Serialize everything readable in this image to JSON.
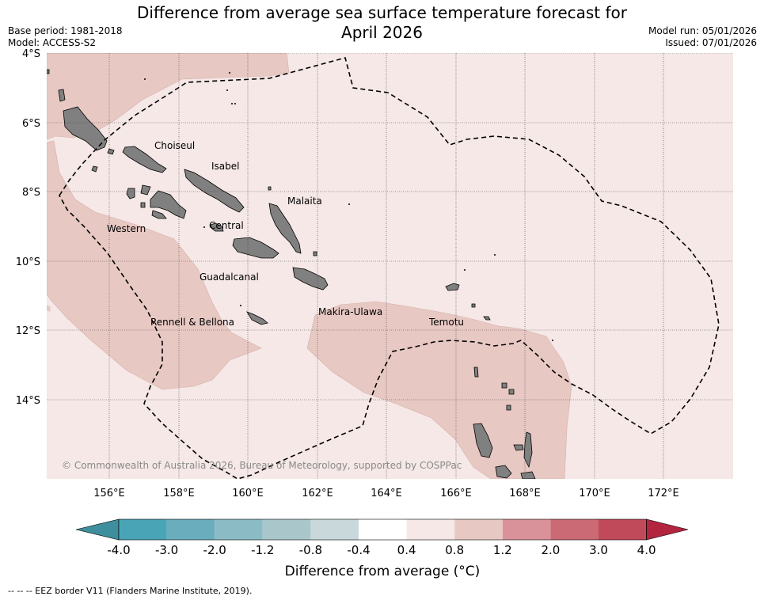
{
  "title": "Difference from average sea surface temperature forecast for",
  "title_line2": "April 2026",
  "meta_left": {
    "base_period": "Base period: 1981-2018",
    "model": "Model: ACCESS-S2"
  },
  "meta_right": {
    "model_run": "Model run: 05/01/2026",
    "issued": "Issued: 07/01/2026"
  },
  "map": {
    "lat_labels": [
      "4°S",
      "6°S",
      "8°S",
      "10°S",
      "12°S",
      "14°S"
    ],
    "lon_labels": [
      "156°E",
      "158°E",
      "160°E",
      "162°E",
      "164°E",
      "166°E",
      "168°E",
      "170°E",
      "172°E"
    ],
    "regions": [
      "Choiseul",
      "Isabel",
      "Malaita",
      "Western",
      "Central",
      "Guadalcanal",
      "Rennell & Bellona",
      "Makira-Ulawa",
      "Temotu"
    ],
    "copyright": "© Commonwealth of Australia 2026, Bureau of Meteorology, supported by COSPPac",
    "colors": {
      "background_anomaly": "#f5e8e6",
      "warm_anomaly": "#e8c8c3",
      "land": "#808080",
      "eez": "#000000"
    }
  },
  "colorbar": {
    "ticks": [
      "-4.0",
      "-3.0",
      "-2.0",
      "-1.2",
      "-0.8",
      "-0.4",
      "0.4",
      "0.8",
      "1.2",
      "2.0",
      "3.0",
      "4.0"
    ],
    "colors": [
      "#3e8f9d",
      "#49a4b6",
      "#6aadbd",
      "#8bbcc5",
      "#a9c7cb",
      "#c9d8db",
      "#ffffff",
      "#f5e8e6",
      "#e8c8c3",
      "#d9929a",
      "#cb6a75",
      "#c14a5a",
      "#b3243f"
    ],
    "label": "Difference from average (°C)"
  },
  "footnote": "--  --  -- EEZ border V11 (Flanders Marine Institute, 2019)."
}
